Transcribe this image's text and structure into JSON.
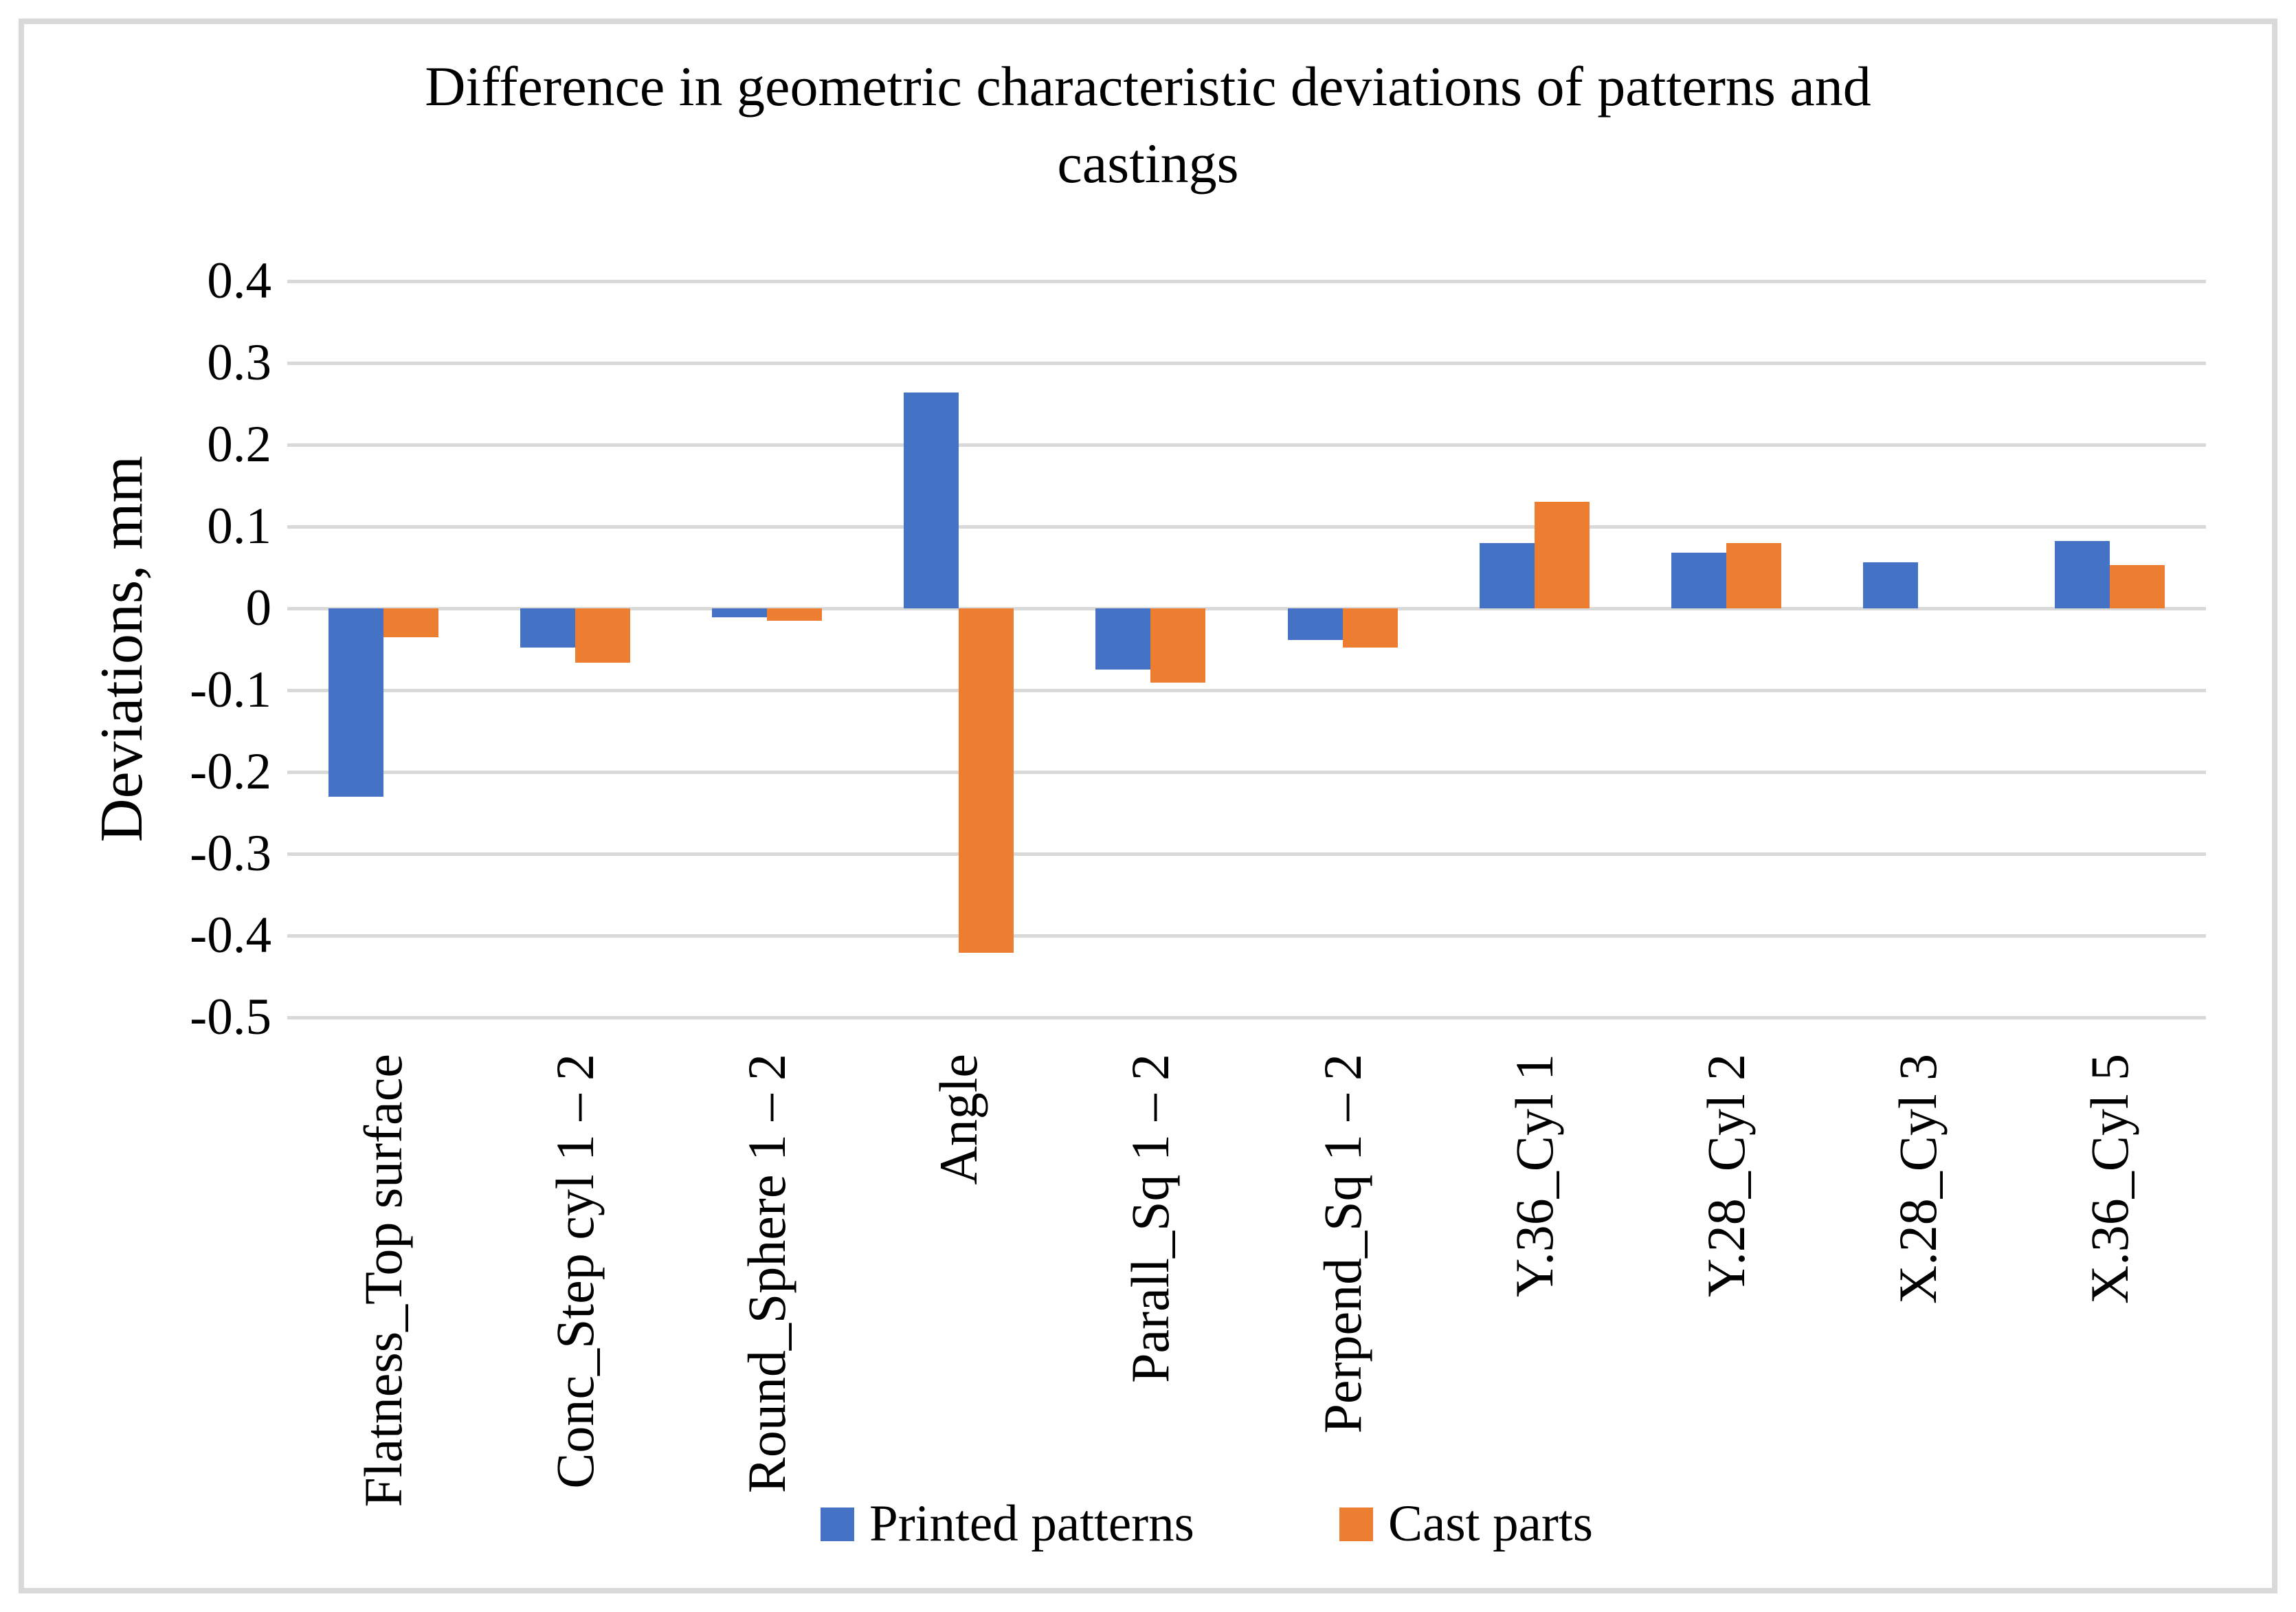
{
  "figure": {
    "title_lines": [
      "Difference in geometric characteristic deviations of patterns and",
      "castings"
    ],
    "background": "#FFFFFF",
    "border_color": "#D9D9D9"
  },
  "chart_data": {
    "type": "bar",
    "title": "Difference in geometric characteristic deviations of patterns and castings",
    "xlabel": "",
    "ylabel": "Deviations, mm",
    "ylim": [
      -0.5,
      0.4
    ],
    "ytick_step": 0.1,
    "grid": true,
    "gridline_color": "#D9D9D9",
    "legend_position": "bottom",
    "yticks": [
      0.4,
      0.3,
      0.2,
      0.1,
      0,
      -0.1,
      -0.2,
      -0.3,
      -0.4,
      -0.5
    ],
    "ytick_labels": [
      "0.4",
      "0.3",
      "0.2",
      "0.1",
      "0",
      "-0.1",
      "-0.2",
      "-0.3",
      "-0.4",
      "-0.5"
    ],
    "categories": [
      "Flatness_Top surface",
      "Conc_Step cyl 1 – 2",
      "Round_Sphere 1 – 2",
      "Angle",
      "Parall_Sq 1 – 2",
      "Perpend_Sq 1 – 2",
      "Y.36_Cyl 1",
      "Y.28_Cyl 2",
      "X.28_Cyl 3",
      "X.36_Cyl 5"
    ],
    "series": [
      {
        "name": "Printed patterns",
        "color": "#4472C4",
        "values": [
          -0.23,
          -0.048,
          -0.011,
          0.264,
          -0.075,
          -0.039,
          0.08,
          0.068,
          0.056,
          0.082
        ]
      },
      {
        "name": "Cast parts",
        "color": "#ED7D31",
        "values": [
          -0.035,
          -0.066,
          -0.015,
          -0.421,
          -0.091,
          -0.048,
          0.13,
          0.08,
          null,
          0.053
        ]
      }
    ]
  }
}
